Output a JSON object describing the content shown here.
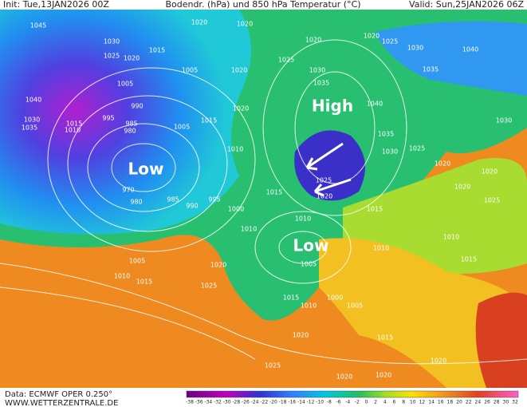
{
  "header": {
    "init": "Init: Tue,13JAN2026 00Z",
    "title": "Bodendr. (hPa) und 850 hPa Temperatur (°C)",
    "valid": "Valid: Sun,25JAN2026 06Z"
  },
  "systems": [
    "Low",
    "High",
    "Low"
  ],
  "isobar_labels": [
    "1045",
    "1030",
    "1020",
    "1020",
    "1025",
    "1020",
    "1015",
    "1005",
    "1005",
    "1020",
    "1025",
    "1030",
    "1035",
    "1020",
    "1020",
    "1025",
    "1030",
    "1040",
    "1035",
    "1040",
    "990",
    "1020",
    "1040",
    "995",
    "985",
    "980",
    "1015",
    "1010",
    "1030",
    "1035",
    "1015",
    "1005",
    "1035",
    "1030",
    "1025",
    "1030",
    "1010",
    "1025",
    "1020",
    "1015",
    "970",
    "980",
    "985",
    "995",
    "990",
    "1000",
    "1020",
    "1015",
    "1010",
    "1010",
    "1010",
    "1010",
    "1005",
    "1015",
    "1005",
    "1010",
    "1015",
    "1020",
    "1025",
    "1015",
    "1010",
    "1000",
    "1005",
    "1015",
    "1020",
    "1020",
    "1025",
    "1020",
    "1020",
    "1020",
    "1025",
    "1020"
  ],
  "footer": {
    "source": "Data: ECMWF OPER 0.250°",
    "site": "WWW.WETTERZENTRALE.DE"
  },
  "colorbar": {
    "ticks": [
      -38,
      -36,
      -34,
      -32,
      -30,
      -28,
      -26,
      -24,
      -22,
      -20,
      -18,
      -16,
      -14,
      -12,
      -10,
      -8,
      -6,
      -4,
      -2,
      0,
      2,
      4,
      6,
      8,
      10,
      12,
      14,
      16,
      18,
      20,
      22,
      24,
      26,
      28,
      30,
      32
    ]
  }
}
